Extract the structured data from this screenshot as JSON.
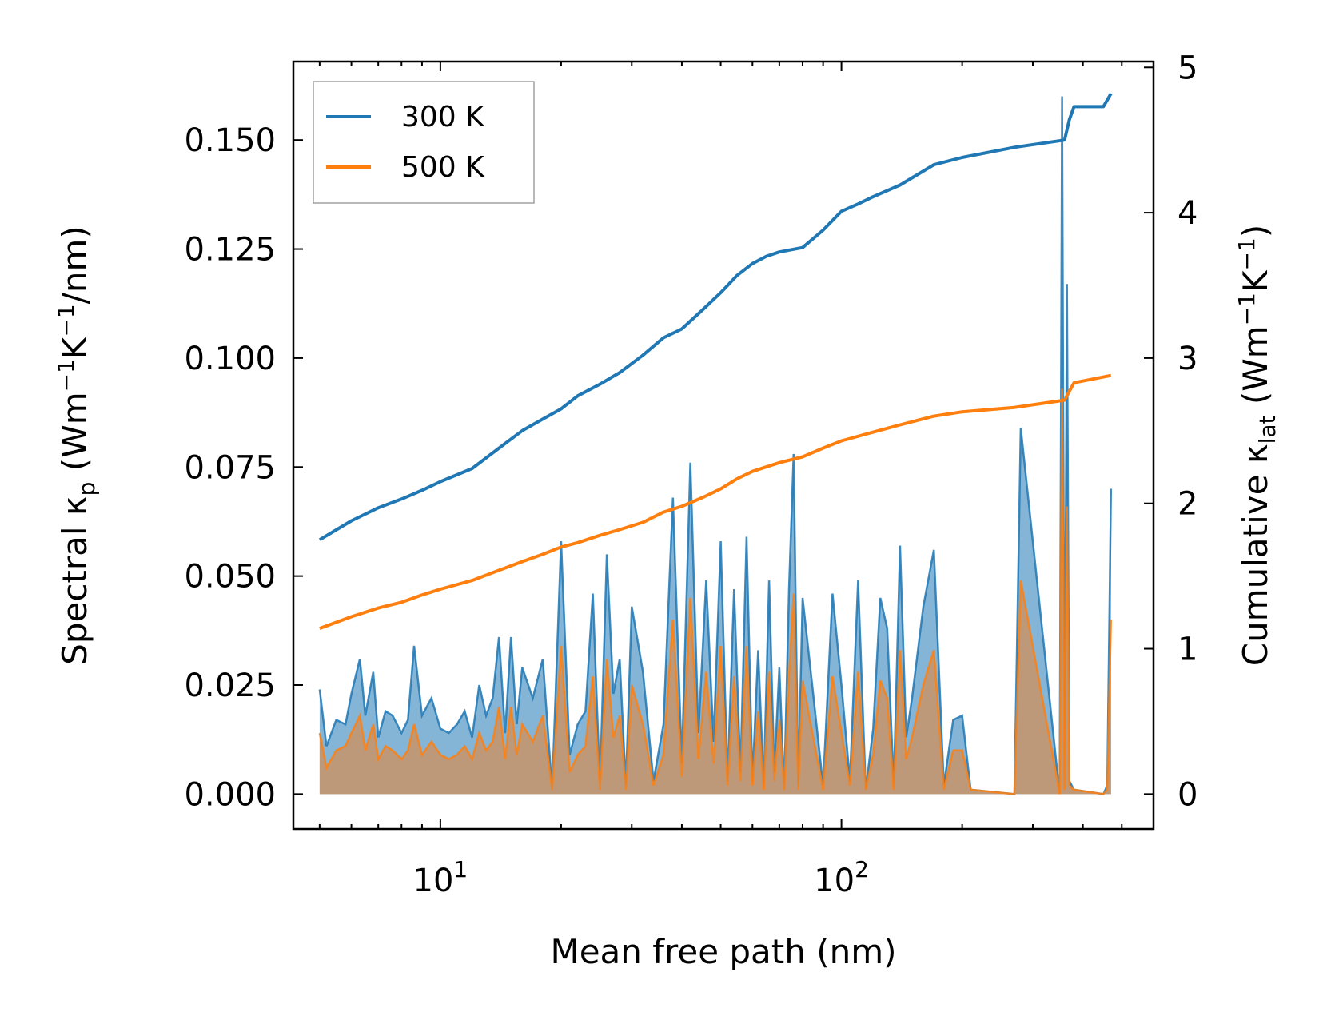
{
  "chart_data": {
    "type": "line",
    "xscale": "log",
    "xlabel": "Mean free path (nm)",
    "xlim": [
      4.3,
      600
    ],
    "x_tick_labels": [
      {
        "value": 10,
        "base": "10",
        "exp": "1"
      },
      {
        "value": 100,
        "base": "10",
        "exp": "2"
      }
    ],
    "y_left": {
      "label_parts": [
        "Spectral κ",
        "p",
        " (Wm",
        "−1",
        "K",
        "−1",
        "/nm)"
      ],
      "ylim": [
        -0.008,
        0.168
      ],
      "ticks": [
        0.0,
        0.025,
        0.05,
        0.075,
        0.1,
        0.125,
        0.15
      ],
      "tick_labels": [
        "0.000",
        "0.025",
        "0.050",
        "0.075",
        "0.100",
        "0.125",
        "0.150"
      ]
    },
    "y_right": {
      "label_parts": [
        "Cumulative κ",
        "lat",
        " (Wm",
        "−1",
        "K",
        "−1",
        ")"
      ],
      "ylim": [
        -0.24,
        5.04
      ],
      "ticks": [
        0,
        1,
        2,
        3,
        4,
        5
      ],
      "tick_labels": [
        "0",
        "1",
        "2",
        "3",
        "4",
        "5"
      ]
    },
    "colors": {
      "300 K": "#1f77b4",
      "500 K": "#ff7f0e",
      "fill_500": "#c4966f"
    },
    "legend": {
      "placement": "top-left",
      "entries": [
        "300 K",
        "500 K"
      ]
    },
    "series": [
      {
        "name": "300 K",
        "axis": "right",
        "kind": "cumulative",
        "x": [
          5,
          6,
          7,
          8,
          9,
          10,
          12,
          14,
          16,
          18,
          20,
          22,
          25,
          28,
          32,
          36,
          40,
          45,
          50,
          55,
          60,
          65,
          70,
          80,
          90,
          100,
          110,
          120,
          140,
          170,
          200,
          270,
          360,
          370,
          380,
          450,
          470
        ],
        "y": [
          1.75,
          1.88,
          1.97,
          2.03,
          2.09,
          2.15,
          2.24,
          2.38,
          2.5,
          2.58,
          2.65,
          2.74,
          2.82,
          2.9,
          3.02,
          3.14,
          3.2,
          3.33,
          3.45,
          3.57,
          3.65,
          3.7,
          3.73,
          3.76,
          3.88,
          4.01,
          4.06,
          4.11,
          4.19,
          4.33,
          4.38,
          4.45,
          4.5,
          4.64,
          4.73,
          4.73,
          4.82
        ]
      },
      {
        "name": "500 K",
        "axis": "right",
        "kind": "cumulative",
        "x": [
          5,
          6,
          7,
          8,
          9,
          10,
          12,
          14,
          16,
          18,
          20,
          22,
          25,
          28,
          32,
          36,
          40,
          45,
          50,
          55,
          60,
          70,
          80,
          90,
          100,
          120,
          140,
          170,
          200,
          270,
          360,
          380,
          470
        ],
        "y": [
          1.14,
          1.22,
          1.28,
          1.32,
          1.37,
          1.41,
          1.47,
          1.54,
          1.6,
          1.65,
          1.7,
          1.73,
          1.78,
          1.82,
          1.87,
          1.94,
          1.98,
          2.04,
          2.1,
          2.17,
          2.22,
          2.28,
          2.32,
          2.38,
          2.43,
          2.49,
          2.54,
          2.6,
          2.63,
          2.66,
          2.71,
          2.83,
          2.88
        ]
      },
      {
        "name": "300 K spectral",
        "axis": "left",
        "kind": "spectral",
        "x": [
          5,
          5.2,
          5.5,
          5.8,
          6.0,
          6.3,
          6.5,
          6.8,
          7.0,
          7.3,
          7.6,
          8.0,
          8.3,
          8.6,
          9.0,
          9.5,
          10,
          10.5,
          11,
          11.5,
          12,
          12.5,
          13,
          13.5,
          14,
          14.5,
          15,
          15.5,
          16,
          17,
          18,
          19,
          20,
          21,
          22,
          23,
          24,
          25,
          26,
          27,
          28,
          29,
          30,
          32,
          34,
          36,
          38,
          40,
          42,
          44,
          46,
          48,
          50,
          52,
          54,
          56,
          58,
          60,
          62,
          64,
          66,
          68,
          70,
          72,
          74,
          76,
          78,
          80,
          85,
          90,
          95,
          100,
          105,
          110,
          115,
          120,
          125,
          130,
          135,
          140,
          145,
          150,
          160,
          170,
          180,
          190,
          200,
          210,
          270,
          280,
          350,
          355,
          360,
          365,
          370,
          380,
          450,
          460,
          470
        ],
        "y": [
          0.024,
          0.011,
          0.017,
          0.016,
          0.023,
          0.031,
          0.018,
          0.028,
          0.013,
          0.019,
          0.018,
          0.014,
          0.017,
          0.034,
          0.018,
          0.022,
          0.015,
          0.014,
          0.016,
          0.019,
          0.013,
          0.025,
          0.018,
          0.022,
          0.036,
          0.014,
          0.036,
          0.016,
          0.029,
          0.022,
          0.031,
          0.001,
          0.058,
          0.009,
          0.016,
          0.019,
          0.046,
          0.002,
          0.055,
          0.023,
          0.031,
          0.002,
          0.043,
          0.028,
          0.003,
          0.016,
          0.068,
          0.007,
          0.076,
          0.014,
          0.049,
          0.012,
          0.058,
          0.003,
          0.047,
          0.005,
          0.059,
          0.003,
          0.033,
          0.002,
          0.049,
          0.005,
          0.029,
          0.001,
          0.047,
          0.078,
          0.002,
          0.045,
          0.023,
          0.002,
          0.046,
          0.025,
          0.003,
          0.049,
          0.001,
          0.015,
          0.045,
          0.038,
          0.002,
          0.057,
          0.013,
          0.022,
          0.043,
          0.056,
          0.002,
          0.017,
          0.018,
          0.001,
          0.0,
          0.084,
          0.0,
          0.16,
          0.002,
          0.117,
          0.003,
          0.001,
          0.0,
          0.002,
          0.07
        ]
      },
      {
        "name": "500 K spectral",
        "axis": "left",
        "kind": "spectral",
        "x": [
          5,
          5.2,
          5.5,
          5.8,
          6.0,
          6.3,
          6.5,
          6.8,
          7.0,
          7.3,
          7.6,
          8.0,
          8.3,
          8.6,
          9.0,
          9.5,
          10,
          10.5,
          11,
          11.5,
          12,
          12.5,
          13,
          13.5,
          14,
          14.5,
          15,
          15.5,
          16,
          17,
          18,
          19,
          20,
          21,
          22,
          23,
          24,
          25,
          26,
          27,
          28,
          29,
          30,
          32,
          34,
          36,
          38,
          40,
          42,
          44,
          46,
          48,
          50,
          52,
          54,
          56,
          58,
          60,
          62,
          64,
          66,
          68,
          70,
          72,
          74,
          76,
          78,
          80,
          85,
          90,
          95,
          100,
          105,
          110,
          115,
          120,
          125,
          130,
          135,
          140,
          145,
          150,
          160,
          170,
          180,
          190,
          200,
          210,
          270,
          280,
          350,
          355,
          360,
          365,
          370,
          380,
          450,
          460,
          470
        ],
        "y": [
          0.014,
          0.006,
          0.01,
          0.011,
          0.014,
          0.018,
          0.01,
          0.016,
          0.008,
          0.011,
          0.01,
          0.008,
          0.01,
          0.016,
          0.009,
          0.012,
          0.009,
          0.008,
          0.009,
          0.011,
          0.008,
          0.014,
          0.01,
          0.012,
          0.02,
          0.008,
          0.02,
          0.009,
          0.016,
          0.012,
          0.018,
          0.001,
          0.034,
          0.005,
          0.009,
          0.011,
          0.027,
          0.001,
          0.031,
          0.013,
          0.018,
          0.001,
          0.025,
          0.016,
          0.002,
          0.009,
          0.04,
          0.004,
          0.045,
          0.008,
          0.028,
          0.007,
          0.034,
          0.002,
          0.027,
          0.003,
          0.034,
          0.002,
          0.019,
          0.001,
          0.028,
          0.003,
          0.017,
          0.001,
          0.027,
          0.046,
          0.001,
          0.026,
          0.013,
          0.001,
          0.027,
          0.014,
          0.002,
          0.028,
          0.001,
          0.009,
          0.026,
          0.022,
          0.001,
          0.033,
          0.008,
          0.013,
          0.025,
          0.033,
          0.001,
          0.01,
          0.01,
          0.001,
          0.0,
          0.049,
          0.0,
          0.093,
          0.001,
          0.066,
          0.002,
          0.001,
          0.0,
          0.001,
          0.04
        ]
      }
    ]
  }
}
